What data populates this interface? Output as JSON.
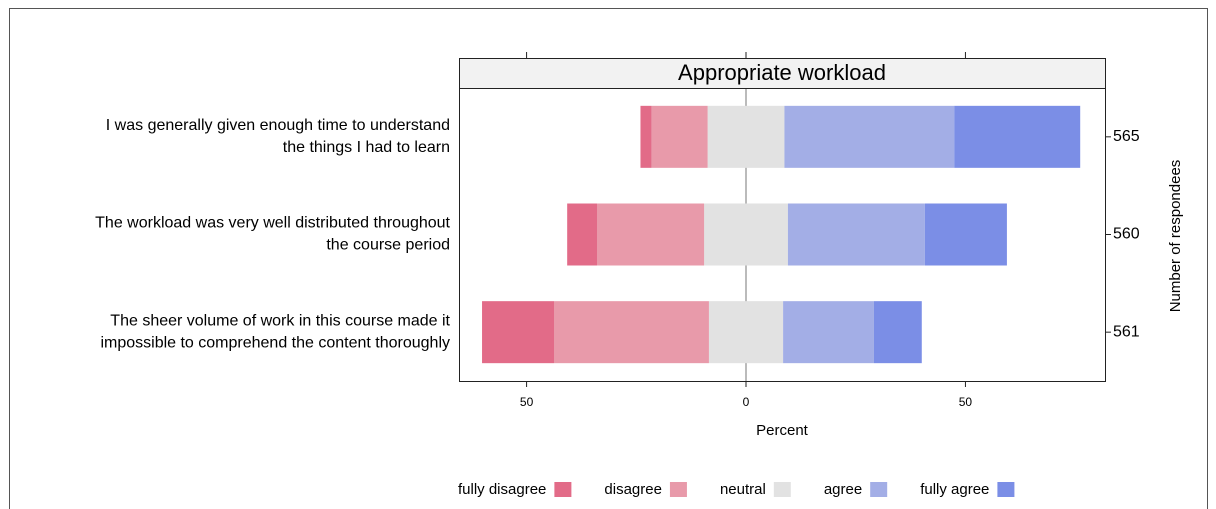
{
  "chart_data": {
    "type": "diverging_bar",
    "title": "Appropriate workload",
    "x_label": "Percent",
    "y2_label": "Number of respondees",
    "categories": [
      [
        "I was generally given enough time to understand",
        "the things I had to learn"
      ],
      [
        "The workload was very well distributed throughout",
        "the course period"
      ],
      [
        "The sheer volume of work in this course made it",
        "impossible to comprehend the content thoroughly"
      ]
    ],
    "counts": [
      565,
      560,
      561
    ],
    "series": [
      {
        "name": "fully disagree",
        "color": "#e26b88",
        "values": [
          2.5,
          6.8,
          16.4
        ]
      },
      {
        "name": "disagree",
        "color": "#e89aaa",
        "values": [
          12.8,
          24.4,
          35.3
        ]
      },
      {
        "name": "neutral",
        "color": "#e2e2e2",
        "values": [
          17.5,
          19.1,
          16.9
        ]
      },
      {
        "name": "agree",
        "color": "#a3aee6",
        "values": [
          38.7,
          31.2,
          20.7
        ]
      },
      {
        "name": "fully agree",
        "color": "#7b8ee6",
        "values": [
          28.7,
          18.7,
          10.9
        ]
      }
    ],
    "xlim": [
      -65.4,
      81.8
    ],
    "xticks": [
      {
        "value": -50,
        "label": "50"
      },
      0,
      50
    ],
    "legend": "bottom"
  }
}
